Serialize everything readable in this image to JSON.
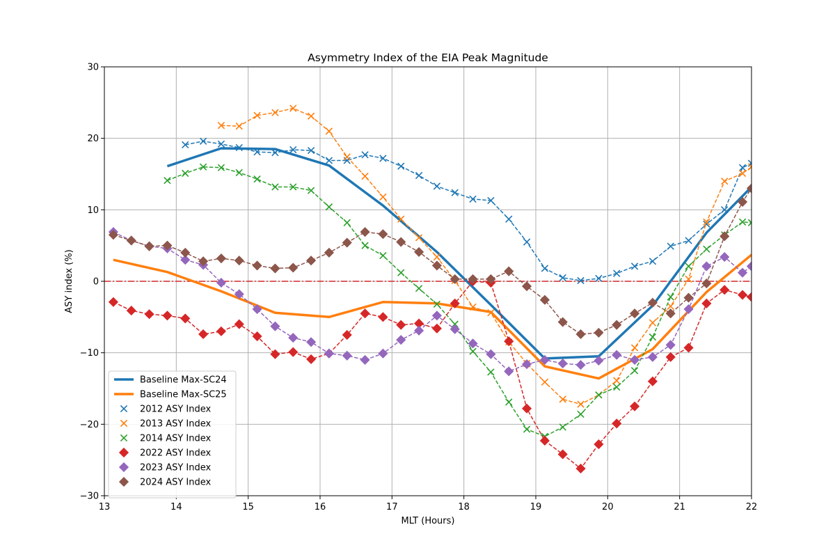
{
  "chart_data": {
    "type": "line",
    "title": "Asymmetry Index of the EIA Peak Magnitude",
    "xlabel": "MLT (Hours)",
    "ylabel": "ASY index (%)",
    "xlim": [
      13,
      22
    ],
    "ylim": [
      -30,
      30
    ],
    "xticks": [
      13,
      14,
      15,
      16,
      17,
      18,
      19,
      20,
      21,
      22
    ],
    "yticks": [
      -30,
      -20,
      -10,
      0,
      10,
      20,
      30
    ],
    "grid": true,
    "legend_position": "lower-left",
    "reference_line": {
      "y": 0,
      "color": "#d62728",
      "style": "dash-dot"
    },
    "series": [
      {
        "name": "Baseline Max-SC24",
        "style": "solid-line",
        "color": "#1f77b4",
        "x": [
          13.875,
          14.625,
          15.375,
          16.125,
          16.875,
          17.625,
          18.375,
          19.125,
          19.875,
          20.625,
          21.375,
          22.0
        ],
        "y": [
          16.1,
          18.6,
          18.5,
          16.2,
          10.6,
          4.1,
          -3.3,
          -10.8,
          -10.5,
          -3.4,
          6.8,
          13.2
        ]
      },
      {
        "name": "Baseline Max-SC25",
        "style": "solid-line",
        "color": "#ff7f0e",
        "x": [
          13.125,
          13.875,
          14.625,
          15.375,
          16.125,
          16.875,
          17.625,
          18.375,
          19.125,
          19.875,
          20.625,
          21.375,
          22.0
        ],
        "y": [
          3.0,
          1.3,
          -1.4,
          -4.4,
          -5.0,
          -2.9,
          -3.1,
          -4.3,
          -11.9,
          -13.6,
          -9.5,
          -1.5,
          3.7
        ]
      },
      {
        "name": "2012 ASY Index",
        "style": "x-dashed",
        "color": "#1f77b4",
        "x": [
          14.125,
          14.375,
          14.625,
          14.875,
          15.125,
          15.375,
          15.625,
          15.875,
          16.125,
          16.375,
          16.625,
          16.875,
          17.125,
          17.375,
          17.625,
          17.875,
          18.125,
          18.375,
          18.625,
          18.875,
          19.125,
          19.375,
          19.625,
          19.875,
          20.125,
          20.375,
          20.625,
          20.875,
          21.125,
          21.375,
          21.625,
          21.875,
          22.0
        ],
        "y": [
          19.1,
          19.6,
          19.2,
          18.7,
          18.1,
          18.0,
          18.4,
          18.3,
          16.9,
          16.9,
          17.7,
          17.2,
          16.1,
          14.8,
          13.3,
          12.4,
          11.5,
          11.3,
          8.7,
          5.5,
          1.8,
          0.5,
          0.1,
          0.4,
          1.1,
          2.1,
          2.8,
          4.9,
          5.7,
          8.0,
          10.0,
          15.9,
          16.5
        ]
      },
      {
        "name": "2013 ASY Index",
        "style": "x-dashed",
        "color": "#ff7f0e",
        "x": [
          14.625,
          14.875,
          15.125,
          15.375,
          15.625,
          15.875,
          16.125,
          16.375,
          16.625,
          16.875,
          17.125,
          17.375,
          17.625,
          17.875,
          18.125,
          18.375,
          18.625,
          18.875,
          19.125,
          19.375,
          19.625,
          19.875,
          20.125,
          20.375,
          20.625,
          20.875,
          21.125,
          21.375,
          21.625,
          21.875,
          22.0
        ],
        "y": [
          21.8,
          21.7,
          23.2,
          23.6,
          24.2,
          23.1,
          21.0,
          17.4,
          14.7,
          11.8,
          8.7,
          6.1,
          3.4,
          0.1,
          -3.6,
          -4.4,
          -8.5,
          -11.5,
          -14.1,
          -16.5,
          -17.2,
          -15.9,
          -13.9,
          -9.3,
          -5.8,
          -3.5,
          0.3,
          8.3,
          14.0,
          15.1,
          16.0
        ]
      },
      {
        "name": "2014 ASY Index",
        "style": "x-dashed",
        "color": "#2ca02c",
        "x": [
          13.875,
          14.125,
          14.375,
          14.625,
          14.875,
          15.125,
          15.375,
          15.625,
          15.875,
          16.125,
          16.375,
          16.625,
          16.875,
          17.125,
          17.375,
          17.625,
          17.875,
          18.125,
          18.375,
          18.625,
          18.875,
          19.125,
          19.375,
          19.625,
          19.875,
          20.125,
          20.375,
          20.625,
          20.875,
          21.125,
          21.375,
          21.625,
          21.875,
          22.0
        ],
        "y": [
          14.1,
          15.1,
          16.0,
          15.9,
          15.2,
          14.3,
          13.2,
          13.2,
          12.7,
          10.4,
          8.2,
          5.0,
          3.6,
          1.2,
          -1.0,
          -3.2,
          -6.0,
          -9.8,
          -12.7,
          -16.9,
          -20.7,
          -21.7,
          -20.4,
          -18.6,
          -15.9,
          -14.8,
          -12.5,
          -7.8,
          -2.2,
          2.1,
          4.5,
          6.5,
          8.3,
          8.2
        ]
      },
      {
        "name": "2022 ASY Index",
        "style": "diamond-dashed",
        "color": "#d62728",
        "x": [
          13.125,
          13.375,
          13.625,
          13.875,
          14.125,
          14.375,
          14.625,
          14.875,
          15.125,
          15.375,
          15.625,
          15.875,
          16.125,
          16.375,
          16.625,
          16.875,
          17.125,
          17.375,
          17.625,
          17.875,
          18.125,
          18.375,
          18.625,
          18.875,
          19.125,
          19.375,
          19.625,
          19.875,
          20.125,
          20.375,
          20.625,
          20.875,
          21.125,
          21.375,
          21.625,
          21.875,
          22.0
        ],
        "y": [
          -2.9,
          -4.1,
          -4.6,
          -4.8,
          -5.2,
          -7.4,
          -7.0,
          -6.0,
          -7.7,
          -10.2,
          -9.9,
          -10.9,
          -10.1,
          -7.5,
          -4.5,
          -5.0,
          -6.1,
          -5.9,
          -6.6,
          -3.1,
          0.0,
          -0.2,
          -8.4,
          -17.8,
          -22.3,
          -24.2,
          -26.2,
          -22.8,
          -19.9,
          -17.5,
          -14.0,
          -10.6,
          -9.3,
          -3.1,
          -1.2,
          -1.9,
          -2.2
        ]
      },
      {
        "name": "2023 ASY Index",
        "style": "diamond-dashed",
        "color": "#9467bd",
        "x": [
          13.125,
          13.375,
          13.625,
          13.875,
          14.125,
          14.375,
          14.625,
          14.875,
          15.125,
          15.375,
          15.625,
          15.875,
          16.125,
          16.375,
          16.625,
          16.875,
          17.125,
          17.375,
          17.625,
          17.875,
          18.125,
          18.375,
          18.625,
          18.875,
          19.125,
          19.375,
          19.625,
          19.875,
          20.125,
          20.375,
          20.625,
          20.875,
          21.125,
          21.375,
          21.625,
          21.875,
          22.0
        ],
        "y": [
          6.9,
          5.7,
          4.9,
          4.6,
          3.0,
          2.3,
          -0.2,
          -1.8,
          -3.9,
          -6.3,
          -7.9,
          -8.5,
          -10.1,
          -10.4,
          -11.0,
          -10.1,
          -8.2,
          -6.9,
          -4.8,
          -6.7,
          -8.7,
          -10.2,
          -12.6,
          -11.6,
          -11.0,
          -11.5,
          -11.7,
          -11.1,
          -10.3,
          -11.0,
          -10.6,
          -8.9,
          -3.9,
          2.1,
          3.4,
          1.2,
          2.1
        ]
      },
      {
        "name": "2024 ASY Index",
        "style": "diamond-dashed",
        "color": "#8c564b",
        "x": [
          13.125,
          13.375,
          13.625,
          13.875,
          14.125,
          14.375,
          14.625,
          14.875,
          15.125,
          15.375,
          15.625,
          15.875,
          16.125,
          16.375,
          16.625,
          16.875,
          17.125,
          17.375,
          17.625,
          17.875,
          18.125,
          18.375,
          18.625,
          18.875,
          19.125,
          19.375,
          19.625,
          19.875,
          20.125,
          20.375,
          20.625,
          20.875,
          21.125,
          21.375,
          21.625,
          21.875,
          22.0
        ],
        "y": [
          6.5,
          5.7,
          4.9,
          5.0,
          4.0,
          2.8,
          3.2,
          2.9,
          2.2,
          1.8,
          1.9,
          2.9,
          4.0,
          5.4,
          6.9,
          6.6,
          5.5,
          4.1,
          2.2,
          0.3,
          0.3,
          0.3,
          1.4,
          -0.7,
          -2.6,
          -5.7,
          -7.4,
          -7.2,
          -6.1,
          -4.5,
          -3.0,
          -4.5,
          -2.3,
          -0.3,
          6.3,
          11.1,
          13.0
        ]
      }
    ]
  }
}
